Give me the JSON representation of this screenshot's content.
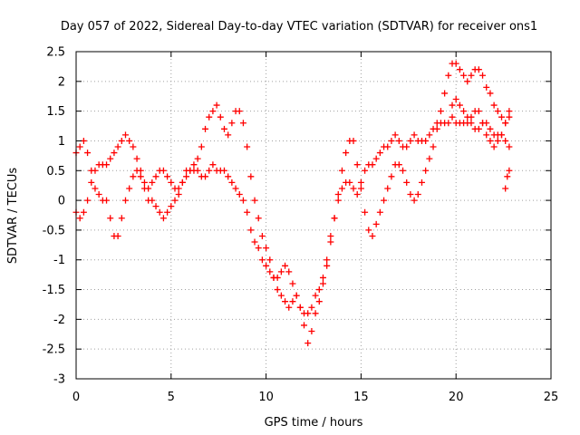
{
  "chart_data": {
    "type": "scatter",
    "title": "Day 057 of 2022, Sidereal Day-to-day VTEC variation (SDTVAR) for receiver ons1",
    "xlabel": "GPS time / hours",
    "ylabel": "SDTVAR / TECUs",
    "xlim": [
      0,
      25
    ],
    "ylim": [
      -3,
      2.5
    ],
    "x_ticks": [
      0,
      5,
      10,
      15,
      20,
      25
    ],
    "x_tick_labels": [
      "0",
      "5",
      "10",
      "15",
      "20",
      "25"
    ],
    "y_ticks": [
      -3,
      -2.5,
      -2,
      -1.5,
      -1,
      -0.5,
      0,
      0.5,
      1,
      1.5,
      2,
      2.5
    ],
    "y_tick_labels": [
      "-3",
      "-2.5",
      "-2",
      "-1.5",
      "-1",
      "-0.5",
      "0",
      "0.5",
      "1",
      "1.5",
      "2",
      "2.5"
    ],
    "grid": true,
    "marker": "+",
    "color": "#ff0000",
    "series": [
      {
        "x": [
          0.0,
          0.2,
          0.4,
          0.6,
          0.8,
          1.0,
          1.2,
          1.4,
          1.6,
          1.8,
          2.0,
          2.2,
          2.4,
          2.6,
          2.8,
          3.0,
          3.2,
          3.4,
          3.6,
          3.8,
          4.0,
          4.2,
          4.4,
          4.6,
          4.8,
          5.0,
          5.2,
          5.4,
          5.6,
          5.8,
          6.0,
          6.2,
          6.4,
          6.6,
          6.8,
          7.0,
          7.2,
          7.4,
          7.6,
          7.8,
          8.0,
          8.2,
          8.4,
          8.6,
          8.8,
          9.0,
          9.2,
          9.4,
          9.6,
          9.8,
          10.0,
          10.2,
          10.4,
          10.6,
          10.8,
          11.0,
          11.2,
          11.4,
          11.6,
          11.8,
          12.0,
          12.2,
          12.4,
          12.6,
          12.8,
          13.0,
          13.2,
          13.4,
          13.6,
          13.8,
          14.0,
          14.2,
          14.4,
          14.6,
          14.8,
          15.0,
          15.2,
          15.4,
          15.6,
          15.8,
          16.0,
          16.2,
          16.4,
          16.6,
          16.8,
          17.0,
          17.2,
          17.4,
          17.6,
          17.8,
          18.0,
          18.2,
          18.4,
          18.6,
          18.8,
          19.0,
          19.2,
          19.4,
          19.6,
          19.8,
          20.0,
          20.2,
          20.4,
          20.6,
          20.8,
          21.0,
          21.2,
          21.4,
          21.6,
          21.8,
          22.0,
          22.2,
          22.4,
          22.6,
          22.8
        ],
        "y": [
          -0.2,
          -0.3,
          -0.2,
          0.0,
          0.3,
          0.5,
          0.6,
          0.6,
          0.6,
          0.7,
          0.8,
          0.9,
          1.0,
          1.1,
          1.0,
          0.9,
          0.7,
          0.5,
          0.3,
          0.2,
          0.3,
          0.4,
          0.5,
          0.5,
          0.4,
          0.3,
          0.2,
          0.2,
          0.3,
          0.4,
          0.5,
          0.6,
          0.7,
          0.9,
          1.2,
          1.4,
          1.5,
          1.6,
          1.4,
          1.2,
          1.1,
          1.3,
          1.5,
          1.5,
          1.3,
          0.9,
          0.4,
          0.0,
          -0.3,
          -0.6,
          -0.8,
          -1.0,
          -1.3,
          -1.5,
          -1.6,
          -1.7,
          -1.8,
          -1.7,
          -1.6,
          -1.8,
          -2.1,
          -2.4,
          -2.2,
          -1.9,
          -1.7,
          -1.4,
          -1.0,
          -0.6,
          -0.3,
          0.0,
          0.2,
          0.3,
          0.3,
          0.2,
          0.1,
          0.3,
          0.5,
          0.6,
          0.6,
          0.7,
          0.8,
          0.9,
          0.9,
          1.0,
          1.1,
          1.0,
          0.9,
          0.9,
          1.0,
          1.1,
          1.0,
          1.0,
          1.0,
          1.1,
          1.2,
          1.3,
          1.3,
          1.3,
          1.3,
          1.4,
          1.3,
          1.3,
          1.3,
          1.3,
          1.3,
          1.2,
          1.2,
          1.3,
          1.3,
          1.2,
          1.1,
          1.1,
          1.1,
          1.0,
          0.9
        ]
      },
      {
        "x": [
          0.0,
          0.2,
          0.4,
          0.6,
          0.8,
          1.0,
          1.2,
          1.4,
          1.6,
          1.8,
          2.0,
          2.2,
          2.4,
          2.6,
          2.8,
          3.0,
          3.2,
          3.4,
          3.6,
          3.8,
          4.0,
          4.2,
          4.4,
          4.6,
          4.8,
          5.0,
          5.2,
          5.4,
          5.6,
          5.8,
          6.0,
          6.2,
          6.4,
          6.6,
          6.8,
          7.0,
          7.2,
          7.4,
          7.6,
          7.8,
          8.0,
          8.2,
          8.4,
          8.6,
          8.8,
          9.0,
          9.2,
          9.4,
          9.6,
          9.8,
          10.0,
          10.2,
          10.4,
          10.6,
          10.8,
          11.0,
          11.2,
          11.4,
          11.6,
          11.8,
          12.0,
          12.2,
          12.4,
          12.6,
          12.8,
          13.0,
          13.2,
          13.4,
          13.6,
          13.8,
          14.0,
          14.2,
          14.4,
          14.6,
          14.8,
          15.0,
          15.2,
          15.4,
          15.6,
          15.8,
          16.0,
          16.2,
          16.4,
          16.6,
          16.8,
          17.0,
          17.2,
          17.4,
          17.6,
          17.8,
          18.0,
          18.2,
          18.4,
          18.6,
          18.8,
          19.0,
          19.2,
          19.4,
          19.6,
          19.8,
          20.0,
          20.2,
          20.4,
          20.6,
          20.8,
          21.0,
          21.2,
          21.4,
          21.6,
          21.8,
          22.0,
          22.2,
          22.4,
          22.6,
          22.8
        ],
        "y": [
          0.8,
          0.9,
          1.0,
          0.8,
          0.5,
          0.2,
          0.1,
          0.0,
          0.0,
          -0.3,
          -0.6,
          -0.6,
          -0.3,
          0.0,
          0.2,
          0.4,
          0.5,
          0.4,
          0.2,
          0.0,
          0.0,
          -0.1,
          -0.2,
          -0.3,
          -0.2,
          -0.1,
          0.0,
          0.1,
          0.3,
          0.5,
          0.5,
          0.5,
          0.5,
          0.4,
          0.4,
          0.5,
          0.6,
          0.5,
          0.5,
          0.5,
          0.4,
          0.3,
          0.2,
          0.1,
          0.0,
          -0.2,
          -0.5,
          -0.7,
          -0.8,
          -1.0,
          -1.1,
          -1.2,
          -1.3,
          -1.3,
          -1.2,
          -1.1,
          -1.2,
          -1.4,
          -1.6,
          -1.8,
          -1.9,
          -1.9,
          -1.8,
          -1.6,
          -1.5,
          -1.3,
          -1.1,
          -0.7,
          -0.3,
          0.1,
          0.5,
          0.8,
          1.0,
          1.0,
          0.6,
          0.2,
          -0.2,
          -0.5,
          -0.6,
          -0.4,
          -0.2,
          0.0,
          0.2,
          0.4,
          0.6,
          0.6,
          0.5,
          0.3,
          0.1,
          0.0,
          0.1,
          0.3,
          0.5,
          0.7,
          0.9,
          1.2,
          1.5,
          1.8,
          2.1,
          2.3,
          2.3,
          2.2,
          2.1,
          2.0,
          2.1,
          2.2,
          2.2,
          2.1,
          1.9,
          1.8,
          1.6,
          1.5,
          1.4,
          1.3,
          1.4
        ]
      },
      {
        "x": [
          19.8,
          20.0,
          20.2,
          20.4,
          20.6,
          20.8,
          21.0,
          21.2,
          21.4,
          21.6,
          21.8,
          22.0,
          22.2,
          22.4,
          22.6,
          22.8,
          22.6,
          22.7,
          22.8
        ],
        "y": [
          1.6,
          1.7,
          1.6,
          1.5,
          1.4,
          1.4,
          1.5,
          1.5,
          1.3,
          1.1,
          1.0,
          0.9,
          1.0,
          1.1,
          1.3,
          1.5,
          0.2,
          0.4,
          0.5
        ]
      }
    ]
  }
}
